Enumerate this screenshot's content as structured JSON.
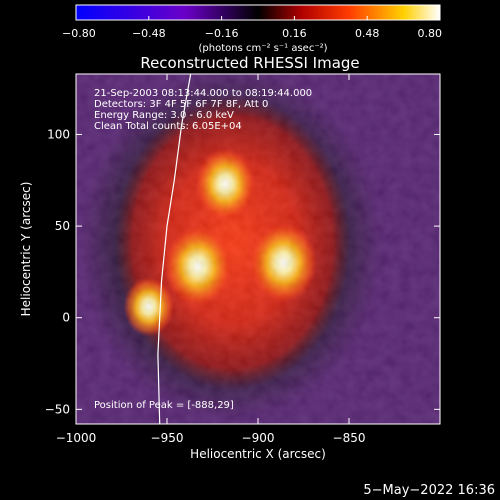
{
  "chart_data": {
    "type": "heatmap",
    "title": "Reconstructed RHESSI Image",
    "xlabel": "Heliocentric X (arcsec)",
    "ylabel": "Heliocentric Y (arcsec)",
    "xlim": [
      -1000,
      -800
    ],
    "ylim": [
      -58,
      133
    ],
    "xticks": [
      {
        "value": -1000,
        "label": "−1000"
      },
      {
        "value": -950,
        "label": "−950"
      },
      {
        "value": -900,
        "label": "−900"
      },
      {
        "value": -850,
        "label": "−850"
      }
    ],
    "yticks": [
      {
        "value": -50,
        "label": "−50"
      },
      {
        "value": 0,
        "label": "0"
      },
      {
        "value": 50,
        "label": "50"
      },
      {
        "value": 100,
        "label": "100"
      }
    ],
    "colorbar": {
      "range": [
        -0.8,
        0.8
      ],
      "ticks": [
        {
          "value": -0.8,
          "label": "−0.80"
        },
        {
          "value": -0.48,
          "label": "−0.48"
        },
        {
          "value": -0.16,
          "label": "−0.16"
        },
        {
          "value": 0.16,
          "label": "0.16"
        },
        {
          "value": 0.48,
          "label": "0.48"
        },
        {
          "value": 0.8,
          "label": "0.80"
        }
      ],
      "unit_label": "(photons cm⁻² s⁻¹ asec⁻²)",
      "colors": [
        "#0000ff",
        "#6a00c8",
        "#000000",
        "#b00000",
        "#ff3c00",
        "#ffd000",
        "#ffffff"
      ]
    },
    "annotations": [
      "21-Sep-2003 08:13:44.000 to 08:19:44.000",
      "Detectors: 3F 4F 5F 6F 7F 8F, Att 0",
      "Energy Range: 3.0 - 6.0 keV",
      "Clean     Total counts: 6.05E+04"
    ],
    "peak_label": "Position of Peak = [-888,29]",
    "peak": {
      "x": -888,
      "y": 29
    },
    "sources": [
      {
        "x": -933,
        "y": 28,
        "intensity": 0.8
      },
      {
        "x": -886,
        "y": 30,
        "intensity": 0.8
      },
      {
        "x": -918,
        "y": 73,
        "intensity": 0.65
      },
      {
        "x": -960,
        "y": 6,
        "intensity": 0.45
      }
    ],
    "limb_curve": [
      {
        "x": -954,
        "y": -58
      },
      {
        "x": -955,
        "y": -20
      },
      {
        "x": -953,
        "y": 20
      },
      {
        "x": -950,
        "y": 50
      },
      {
        "x": -946,
        "y": 75
      },
      {
        "x": -942,
        "y": 105
      },
      {
        "x": -937,
        "y": 133
      }
    ]
  },
  "footer": {
    "timestamp": "5−May−2022 16:36"
  }
}
